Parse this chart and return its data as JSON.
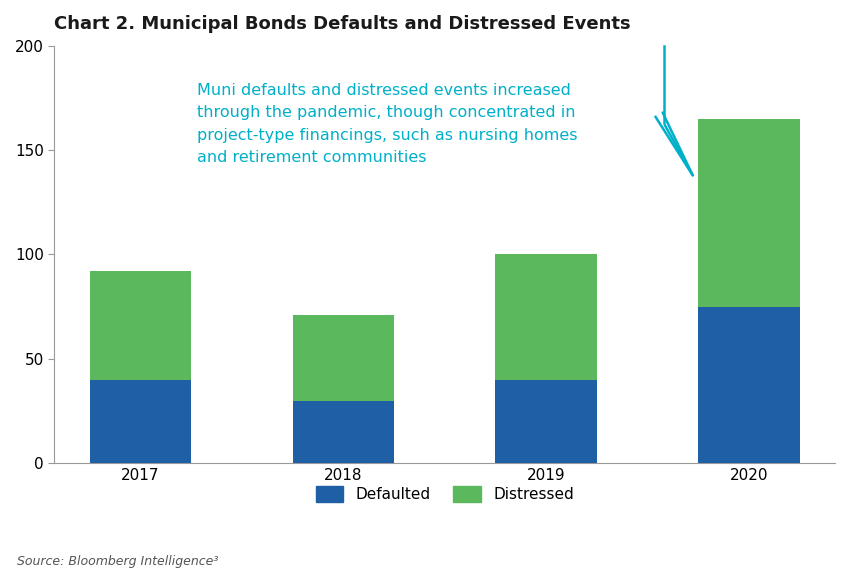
{
  "title": "Chart 2. Municipal Bonds Defaults and Distressed Events",
  "categories": [
    "2017",
    "2018",
    "2019",
    "2020"
  ],
  "defaulted": [
    40,
    30,
    40,
    75
  ],
  "distressed": [
    52,
    41,
    60,
    90
  ],
  "defaulted_color": "#1f5fa6",
  "distressed_color": "#5cb85c",
  "ylim": [
    0,
    200
  ],
  "yticks": [
    0,
    50,
    100,
    150,
    200
  ],
  "annotation_text": "Muni defaults and distressed events increased\nthrough the pandemic, though concentrated in\nproject-type financings, such as nursing homes\nand retirement communities",
  "annotation_color": "#00b0c8",
  "source_text": "Source: Bloomberg Intelligence³",
  "legend_defaulted": "Defaulted",
  "legend_distressed": "Distressed",
  "background_color": "#ffffff",
  "title_fontsize": 13,
  "axis_fontsize": 11,
  "annotation_fontsize": 11.5,
  "source_fontsize": 9
}
